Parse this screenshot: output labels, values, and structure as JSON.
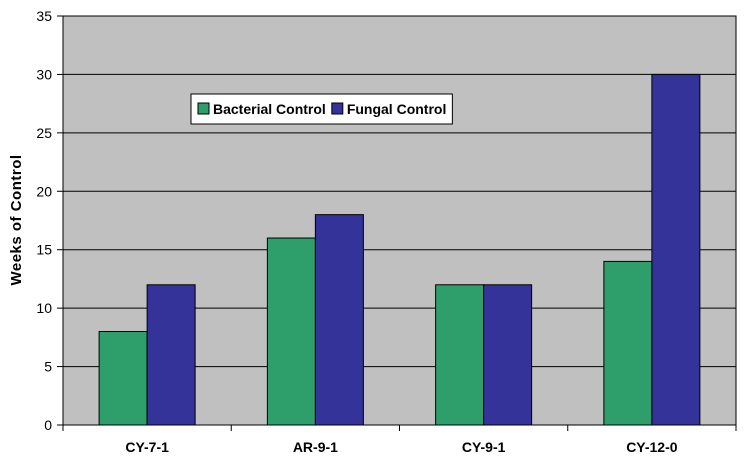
{
  "chart_data": {
    "type": "bar",
    "categories": [
      "CY-7-1",
      "AR-9-1",
      "CY-9-1",
      "CY-12-0"
    ],
    "series": [
      {
        "name": "Bacterial Control",
        "values": [
          8,
          16,
          12,
          14
        ],
        "color": "#2e9e6b"
      },
      {
        "name": "Fungal Control",
        "values": [
          12,
          18,
          12,
          30
        ],
        "color": "#333399"
      }
    ],
    "ylabel": "Weeks of Control",
    "xlabel": "",
    "ylim": [
      0,
      35
    ],
    "yticks": [
      "0",
      "5",
      "10",
      "15",
      "20",
      "25",
      "30",
      "35"
    ],
    "grid": true,
    "legend_position": "top-left",
    "plot_background": "#c0c0c0"
  }
}
